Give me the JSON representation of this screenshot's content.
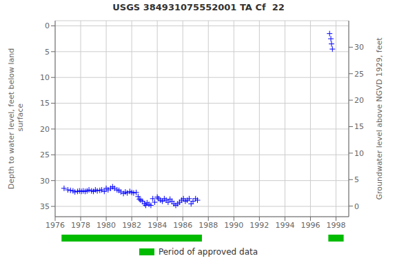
{
  "chart_data": {
    "type": "scatter",
    "title": "USGS 384931075552001 TA Cf  22",
    "ylabel": "Depth to water level, feet below land\n surface",
    "y2label": "Groundwater level above NGVD 1929, feet",
    "xlim": [
      1976,
      1999
    ],
    "xticks": [
      1976,
      1978,
      1980,
      1982,
      1984,
      1986,
      1988,
      1990,
      1992,
      1994,
      1996,
      1998
    ],
    "ylim": [
      37,
      -1
    ],
    "yticks": [
      0,
      5,
      10,
      15,
      20,
      25,
      30,
      35
    ],
    "y2lim": [
      -2,
      35
    ],
    "y2ticks": [
      0,
      5,
      10,
      15,
      20,
      25,
      30
    ],
    "grid": true,
    "legend": "bottom",
    "series": [
      {
        "color": "#0000ff",
        "marker": "+",
        "x": [
          1976.7,
          1977.0,
          1977.2,
          1977.4,
          1977.55,
          1977.75,
          1977.9,
          1978.05,
          1978.2,
          1978.35,
          1978.5,
          1978.65,
          1978.85,
          1979.0,
          1979.15,
          1979.3,
          1979.5,
          1979.65,
          1979.85,
          1980.0,
          1980.15,
          1980.35,
          1980.5,
          1980.65,
          1980.85,
          1981.0,
          1981.15,
          1981.35,
          1981.5,
          1981.65,
          1981.85,
          1982.0,
          1982.15,
          1982.35,
          1982.5,
          1982.6,
          1982.7,
          1982.85,
          1983.0,
          1983.1,
          1983.2,
          1983.35,
          1983.5,
          1983.65,
          1983.8,
          1984.0,
          1984.1,
          1984.25,
          1984.4,
          1984.55,
          1984.7,
          1984.85,
          1985.0,
          1985.15,
          1985.3,
          1985.45,
          1985.6,
          1985.75,
          1985.9,
          1986.05,
          1986.2,
          1986.35,
          1986.5,
          1986.65,
          1986.8,
          1987.0,
          1987.15
        ],
        "values": [
          31.5,
          31.8,
          31.9,
          32.0,
          32.2,
          32.1,
          32.0,
          32.1,
          32.0,
          32.1,
          32.0,
          31.8,
          32.0,
          32.1,
          31.8,
          32.0,
          31.9,
          31.8,
          32.1,
          31.5,
          31.8,
          31.5,
          31.2,
          31.5,
          31.8,
          31.9,
          32.2,
          32.5,
          32.2,
          32.4,
          32.1,
          32.3,
          32.4,
          32.3,
          33.1,
          33.6,
          33.8,
          34.0,
          34.5,
          34.8,
          34.3,
          34.6,
          34.8,
          33.5,
          34.2,
          33.2,
          33.5,
          33.8,
          34.0,
          33.5,
          33.8,
          34.2,
          33.6,
          34.0,
          34.5,
          34.8,
          34.5,
          34.2,
          33.8,
          33.5,
          34.0,
          33.8,
          33.5,
          34.5,
          34.0,
          33.5,
          33.8
        ]
      },
      {
        "color": "#0000ff",
        "marker": "+",
        "x": [
          1997.5,
          1997.6,
          1997.65,
          1997.72
        ],
        "values": [
          1.5,
          2.5,
          3.5,
          4.5
        ]
      }
    ],
    "periods": {
      "name": "Period of approved data",
      "color": "#00bb00",
      "ranges": [
        [
          1976.5,
          1987.5
        ],
        [
          1997.4,
          1998.6
        ]
      ]
    }
  }
}
